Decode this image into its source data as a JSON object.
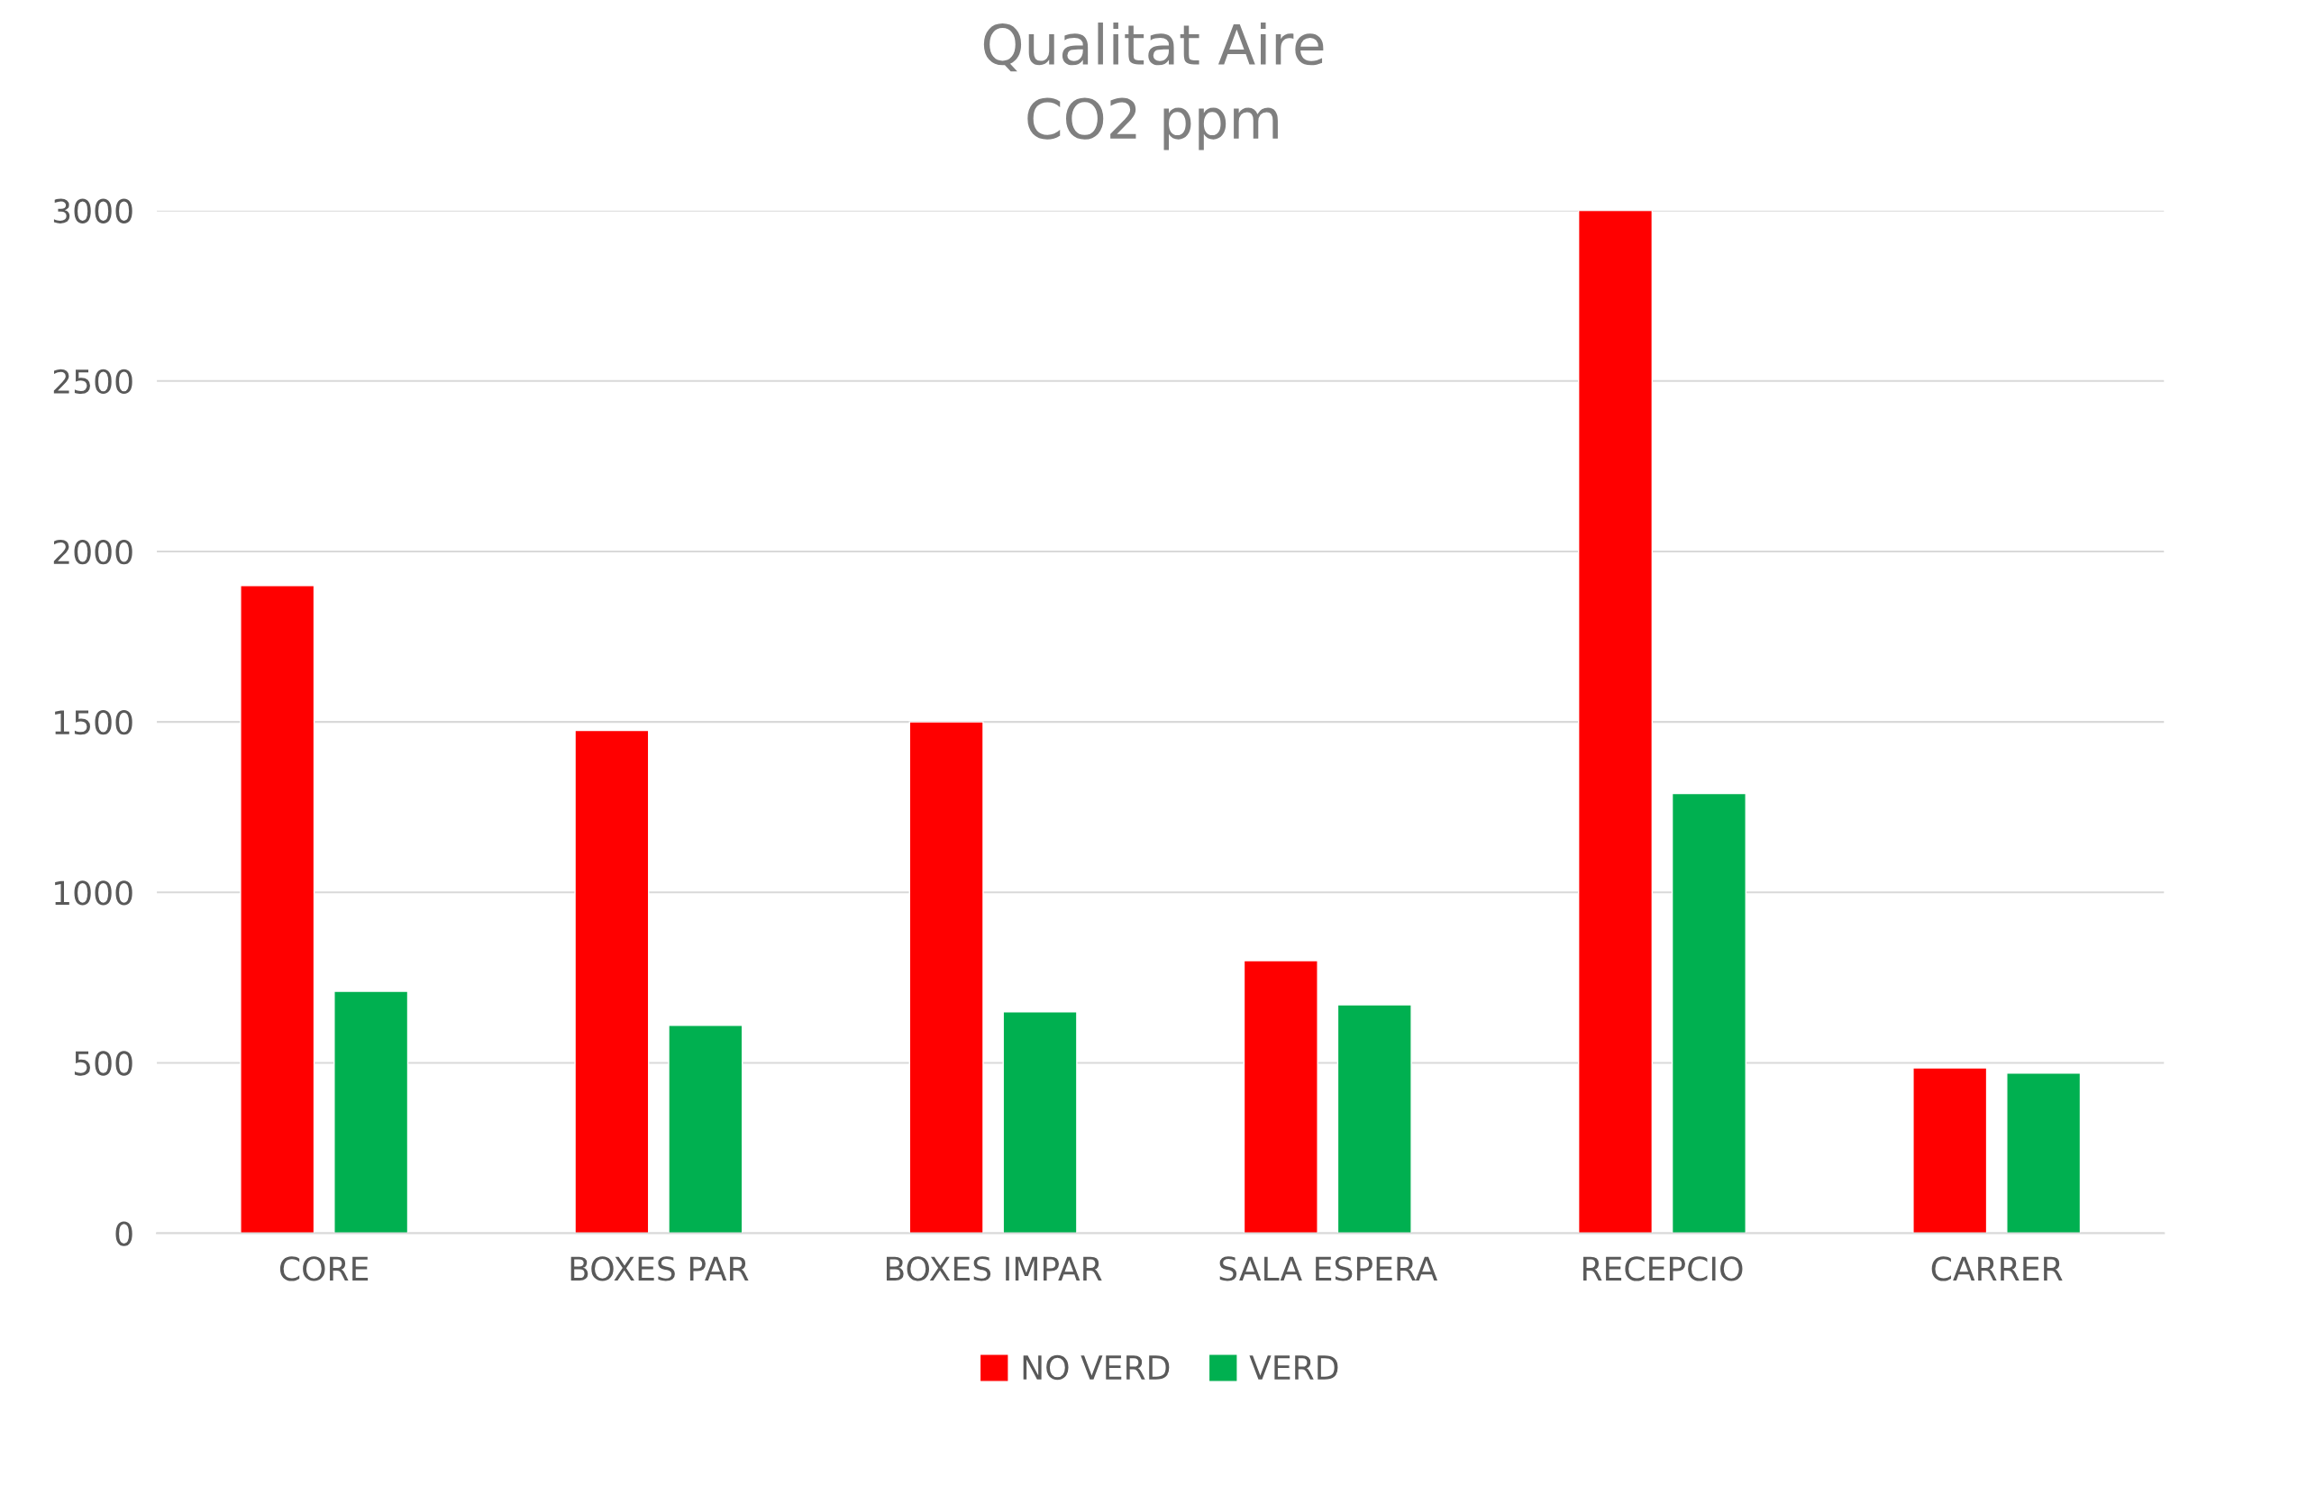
{
  "chart_data": {
    "type": "bar",
    "title": "Qualitat Aire\nCO2 ppm",
    "categories": [
      "CORE",
      "BOXES PAR",
      "BOXES IMPAR",
      "SALA ESPERA",
      "RECEPCIO",
      "CARRER"
    ],
    "series": [
      {
        "name": "NO VERD",
        "color": "#ff0000",
        "values": [
          1900,
          1475,
          1500,
          800,
          3000,
          485
        ]
      },
      {
        "name": "VERD",
        "color": "#00b050",
        "values": [
          710,
          610,
          650,
          670,
          1290,
          470
        ]
      }
    ],
    "ylim": [
      0,
      3000
    ],
    "yticks": [
      0,
      500,
      1000,
      1500,
      2000,
      2500,
      3000
    ],
    "grid": "y",
    "legend": "bottom"
  }
}
